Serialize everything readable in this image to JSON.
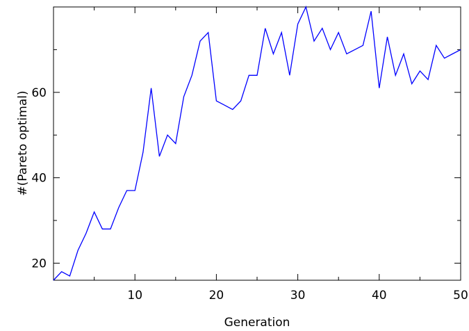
{
  "chart_data": {
    "type": "line",
    "xlabel": "Generation",
    "ylabel": "#(Pareto optimal)",
    "xlim": [
      0,
      50
    ],
    "ylim": [
      16,
      80
    ],
    "xticks": [
      10,
      20,
      30,
      40,
      50
    ],
    "yticks": [
      20,
      40,
      60
    ],
    "grid": false,
    "legend": "none",
    "line_color": "#0000ff",
    "series": [
      {
        "x": [
          0,
          1,
          2,
          3,
          4,
          5,
          6,
          7,
          8,
          9,
          10,
          11,
          12,
          13,
          14,
          15,
          16,
          17,
          18,
          19,
          20,
          21,
          22,
          23,
          24,
          25,
          26,
          27,
          28,
          29,
          30,
          31,
          32,
          33,
          34,
          35,
          36,
          37,
          38,
          39,
          40,
          41,
          42,
          43,
          44,
          45,
          46,
          47,
          48,
          49,
          50
        ],
        "values": [
          16,
          18,
          17,
          23,
          27,
          32,
          28,
          28,
          33,
          37,
          37,
          46,
          61,
          45,
          50,
          48,
          59,
          64,
          72,
          74,
          58,
          57,
          56,
          58,
          64,
          64,
          75,
          69,
          74,
          64,
          76,
          80,
          72,
          75,
          70,
          74,
          69,
          70,
          71,
          79,
          61,
          73,
          64,
          69,
          62,
          65,
          63,
          71,
          68,
          69,
          70
        ]
      }
    ]
  }
}
